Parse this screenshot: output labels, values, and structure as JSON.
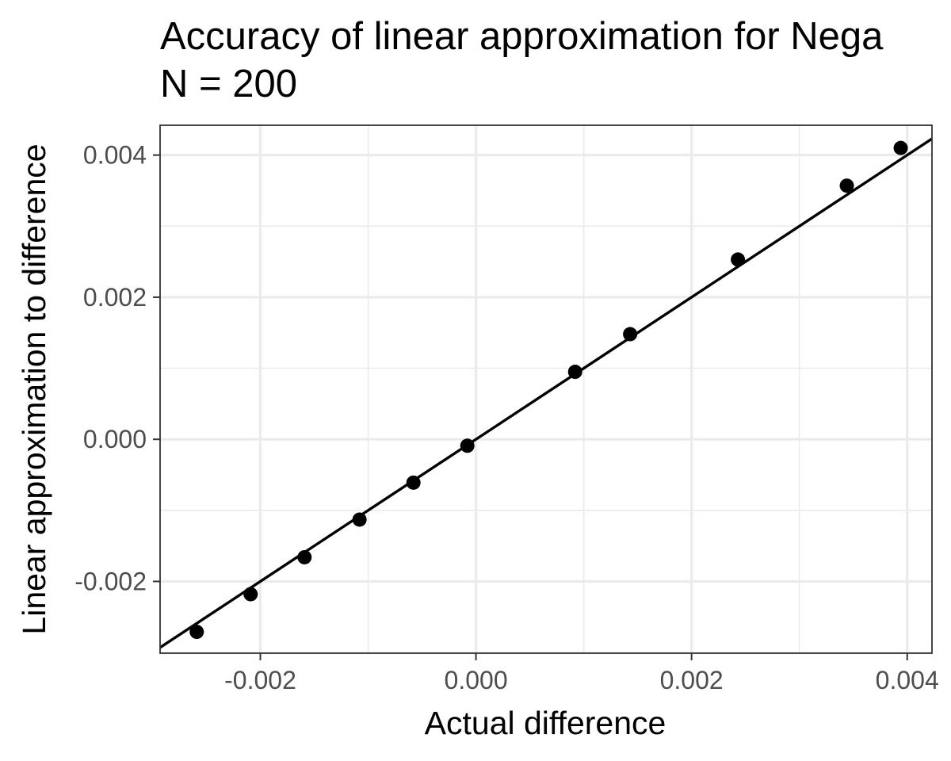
{
  "chart_data": {
    "type": "scatter",
    "title": "Accuracy of linear approximation for Nega",
    "subtitle": "N = 200",
    "xlabel": "Actual difference",
    "ylabel": "Linear approximation to difference",
    "xlim": [
      -0.00293,
      0.00423
    ],
    "ylim": [
      -0.00301,
      0.00442
    ],
    "x_ticks": [
      -0.002,
      0.0,
      0.002,
      0.004
    ],
    "x_tick_labels": [
      "-0.002",
      "0.000",
      "0.002",
      "0.004"
    ],
    "y_ticks": [
      -0.002,
      0.0,
      0.002,
      0.004
    ],
    "y_tick_labels": [
      "-0.002",
      "0.000",
      "0.002",
      "0.004"
    ],
    "grid": true,
    "legend": "none",
    "series": [
      {
        "type": "scatter",
        "x": [
          -0.00259,
          -0.00209,
          -0.00159,
          -0.00108,
          -0.00058,
          -8e-05,
          0.00092,
          0.00143,
          0.00243,
          0.00344,
          0.00394
        ],
        "y": [
          -0.00271,
          -0.00218,
          -0.00166,
          -0.00113,
          -0.00061,
          -9e-05,
          0.00095,
          0.00148,
          0.00253,
          0.00357,
          0.0041
        ]
      },
      {
        "type": "line",
        "x": [
          -0.00293,
          0.00423
        ],
        "y": [
          -0.00293,
          0.00423
        ]
      }
    ],
    "colors": {
      "points": "#000000",
      "line": "#000000",
      "grid": "#ebebeb",
      "panel_border": "#333333",
      "tick_label": "#4d4d4d"
    }
  }
}
